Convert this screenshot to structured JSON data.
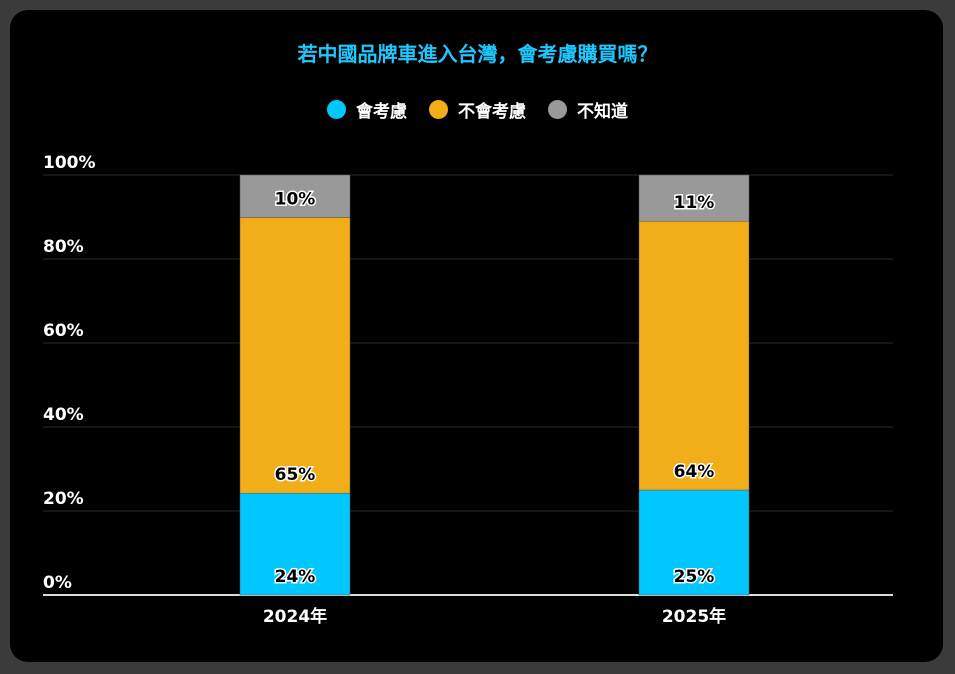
{
  "chart_data": {
    "type": "bar",
    "stacked": true,
    "title": "若中國品牌車進入台灣，會考慮購買嗎？",
    "categories": [
      "2024年",
      "2025年"
    ],
    "series": [
      {
        "name": "會考慮",
        "values": [
          24,
          25
        ],
        "color": "#00c8ff"
      },
      {
        "name": "不會考慮",
        "values": [
          65,
          64
        ],
        "color": "#f2ae19"
      },
      {
        "name": "不知道",
        "values": [
          10,
          11
        ],
        "color": "#999999"
      }
    ],
    "yticks": [
      "0%",
      "20%",
      "40%",
      "60%",
      "80%",
      "100%"
    ],
    "ylim": [
      0,
      100
    ],
    "xlabel": "",
    "ylabel": "",
    "grid": true,
    "legend": "top-center",
    "value_suffix": "%"
  }
}
